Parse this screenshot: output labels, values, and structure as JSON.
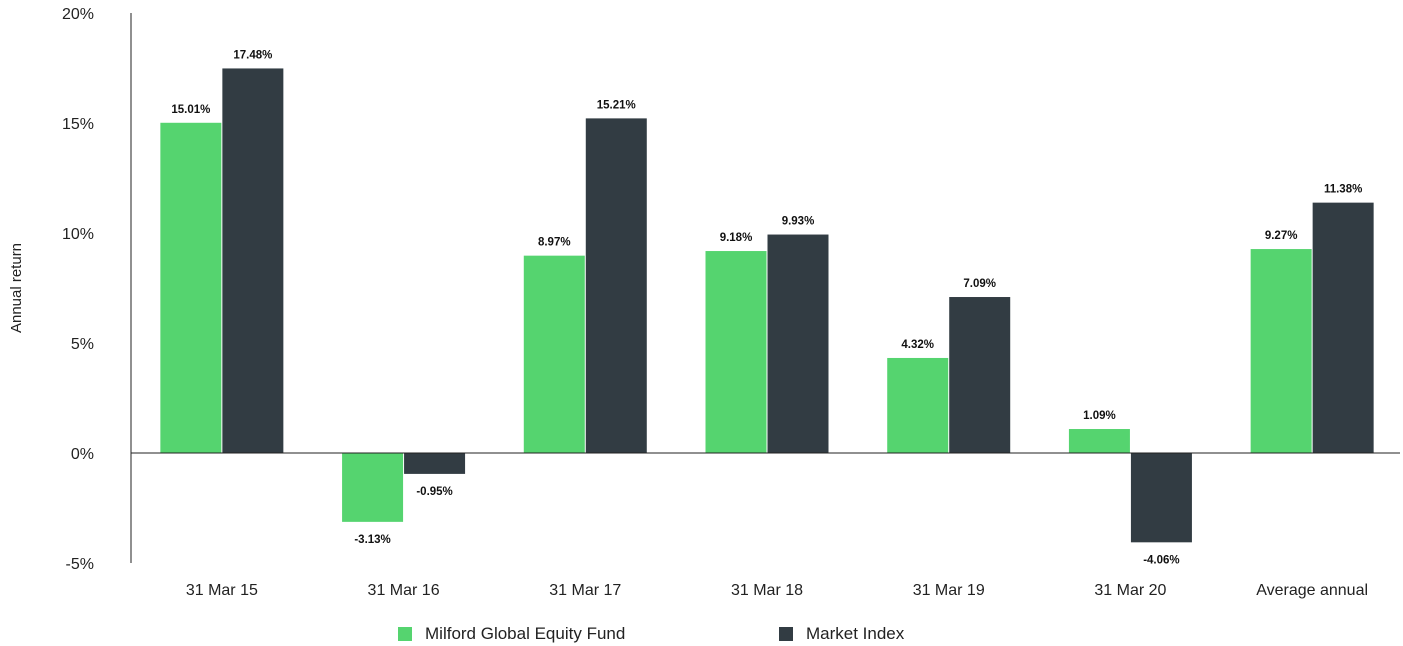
{
  "chart_data": {
    "type": "bar",
    "ylabel": "Annual return",
    "xlabel": "",
    "ylim": [
      -5,
      20
    ],
    "yticks": [
      "20%",
      "15%",
      "10%",
      "5%",
      "0%",
      "-5%"
    ],
    "categories": [
      "31 Mar 15",
      "31 Mar 16",
      "31 Mar 17",
      "31 Mar 18",
      "31 Mar 19",
      "31 Mar 20",
      "Average annual"
    ],
    "series": [
      {
        "name": "Milford Global Equity Fund",
        "color": "#55d46f",
        "values": [
          15.01,
          -3.13,
          8.97,
          9.18,
          4.32,
          1.09,
          9.27
        ],
        "labels": [
          "15.01%",
          "-3.13%",
          "8.97%",
          "9.18%",
          "4.32%",
          "1.09%",
          "9.27%"
        ]
      },
      {
        "name": "Market Index",
        "color": "#323c43",
        "values": [
          17.48,
          -0.95,
          15.21,
          9.93,
          7.09,
          -4.06,
          11.38
        ],
        "labels": [
          "17.48%",
          "-0.95%",
          "15.21%",
          "9.93%",
          "7.09%",
          "-4.06%",
          "11.38%"
        ]
      }
    ],
    "legend_position": "bottom",
    "grid": false
  }
}
